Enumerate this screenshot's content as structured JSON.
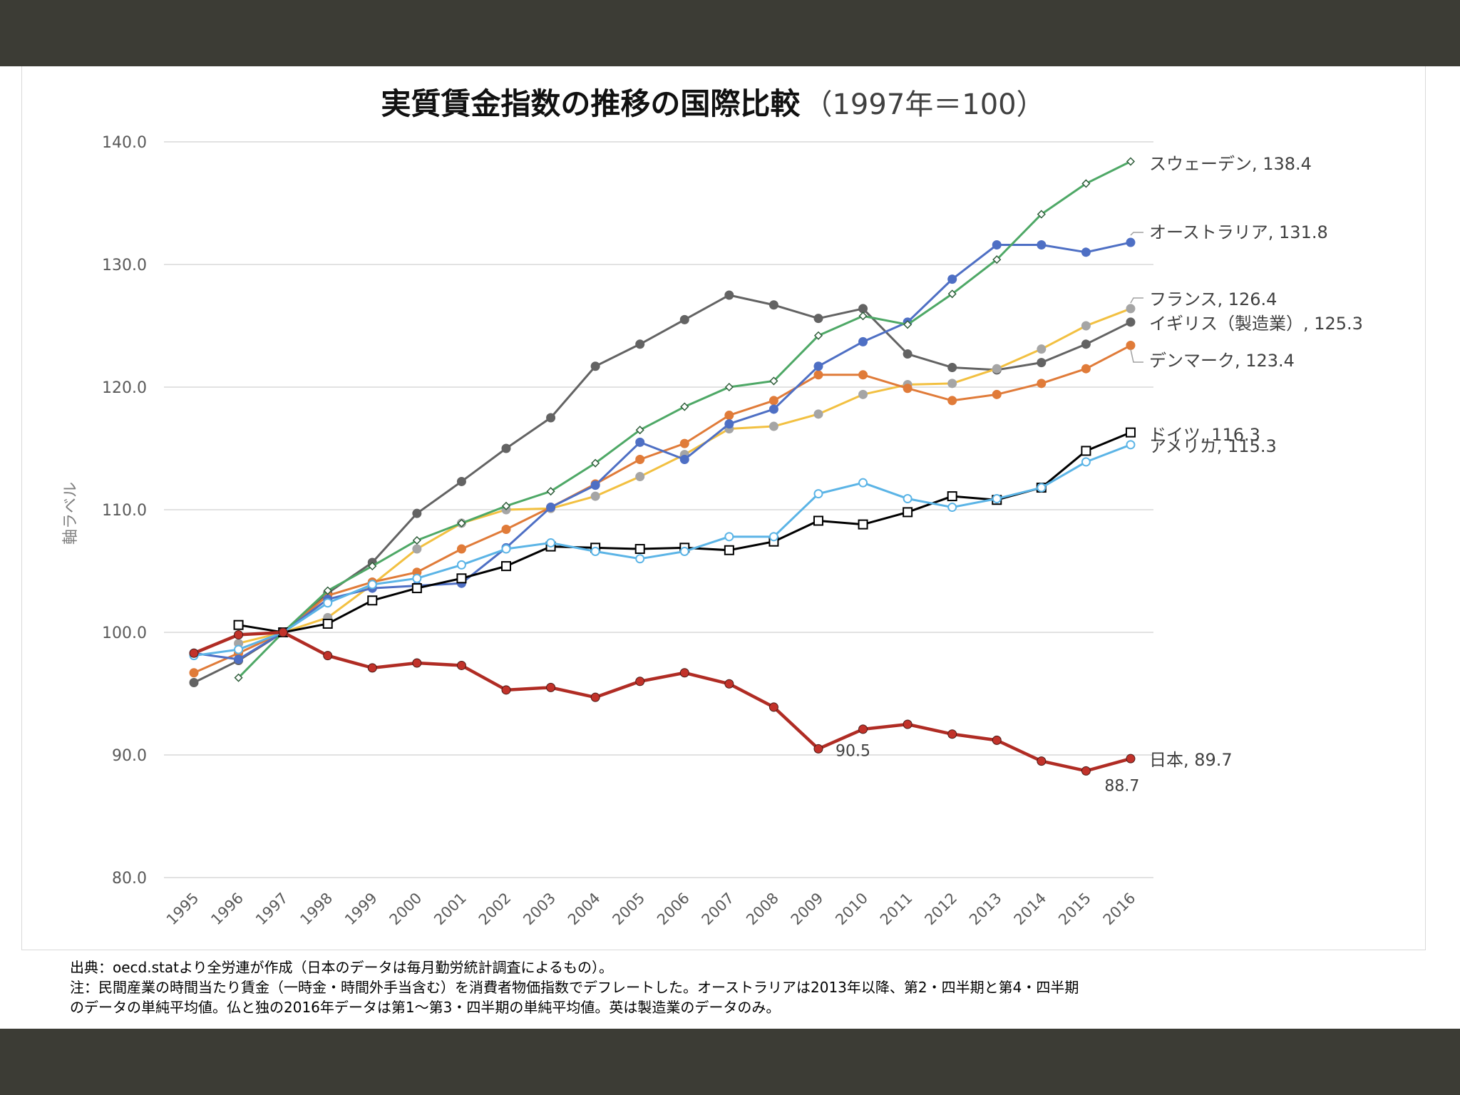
{
  "chart_data": {
    "type": "line",
    "title": "実質賃金指数の推移の国際比較",
    "title_suffix": "（1997年＝100）",
    "ylabel": "軸ラベル",
    "ylim": [
      80,
      140
    ],
    "yticks": [
      "80.0",
      "90.0",
      "100.0",
      "110.0",
      "120.0",
      "130.0",
      "140.0"
    ],
    "grid": true,
    "legend": "labels at series ends",
    "x": [
      "1995",
      "1996",
      "1997",
      "1998",
      "1999",
      "2000",
      "2001",
      "2002",
      "2003",
      "2004",
      "2005",
      "2006",
      "2007",
      "2008",
      "2009",
      "2010",
      "2011",
      "2012",
      "2013",
      "2014",
      "2015",
      "2016"
    ],
    "series": [
      {
        "name": "イギリス（製造業）",
        "end_label": "イギリス（製造業）, 125.3",
        "color": "#636363",
        "marker": "circle",
        "values": [
          95.9,
          97.7,
          100,
          103.2,
          105.7,
          109.7,
          112.3,
          115.0,
          117.5,
          121.7,
          123.5,
          125.5,
          127.5,
          126.7,
          125.6,
          126.4,
          122.7,
          121.6,
          121.4,
          122.0,
          123.5,
          125.3
        ]
      },
      {
        "name": "フランス",
        "end_label": "フランス, 126.4",
        "color": "#f2c041",
        "marker": "circle",
        "marker_color": "#a5a5a5",
        "values": [
          null,
          99.1,
          100,
          101.2,
          103.9,
          106.8,
          108.9,
          110.0,
          110.1,
          111.1,
          112.7,
          114.5,
          116.6,
          116.8,
          117.8,
          119.4,
          120.2,
          120.3,
          121.5,
          123.1,
          125.0,
          126.4
        ]
      },
      {
        "name": "デンマーク",
        "end_label": "デンマーク, 123.4",
        "color": "#e07b39",
        "marker": "circle",
        "values": [
          96.7,
          98.3,
          100,
          103.0,
          104.1,
          104.9,
          106.8,
          108.4,
          110.2,
          112.1,
          114.1,
          115.4,
          117.7,
          118.9,
          121.0,
          121.0,
          119.9,
          118.9,
          119.4,
          120.3,
          121.5,
          123.4
        ]
      },
      {
        "name": "オーストラリア",
        "end_label": "オーストラリア, 131.8",
        "color": "#4e6fc4",
        "marker": "circle",
        "values": [
          98.3,
          97.8,
          100,
          102.7,
          103.6,
          103.8,
          104.0,
          106.9,
          110.2,
          112.0,
          115.5,
          114.1,
          117.0,
          118.2,
          121.7,
          123.7,
          125.3,
          128.8,
          131.6,
          131.6,
          131.0,
          131.8
        ]
      },
      {
        "name": "スウェーデン",
        "end_label": "スウェーデン, 138.4",
        "color": "#4ea866",
        "marker": "diamond",
        "values": [
          null,
          96.3,
          100,
          103.4,
          105.4,
          107.5,
          108.9,
          110.3,
          111.5,
          113.8,
          116.5,
          118.4,
          120.0,
          120.5,
          124.2,
          125.8,
          125.1,
          127.6,
          130.4,
          134.1,
          136.6,
          138.4
        ]
      },
      {
        "name": "ドイツ",
        "end_label": "ドイツ, 116.3",
        "color": "#000000",
        "marker": "square",
        "values": [
          null,
          100.6,
          100,
          100.7,
          102.6,
          103.6,
          104.4,
          105.4,
          107.0,
          106.9,
          106.8,
          106.9,
          106.7,
          107.4,
          109.1,
          108.8,
          109.8,
          111.1,
          110.8,
          111.8,
          114.8,
          116.3
        ]
      },
      {
        "name": "アメリカ",
        "end_label": "アメリカ, 115.3",
        "color": "#5bb4e6",
        "marker": "open-circle",
        "values": [
          98.1,
          98.6,
          100,
          102.4,
          103.9,
          104.4,
          105.5,
          106.8,
          107.3,
          106.6,
          106.0,
          106.6,
          107.8,
          107.8,
          111.3,
          112.2,
          110.9,
          110.2,
          110.9,
          111.8,
          113.9,
          115.3
        ]
      },
      {
        "name": "日本",
        "end_label": "日本, 89.7",
        "color": "#b02c24",
        "marker": "circle",
        "marker_color": "#c2322a",
        "values": [
          98.3,
          99.8,
          100,
          98.1,
          97.1,
          97.5,
          97.3,
          95.3,
          95.5,
          94.7,
          96.0,
          96.7,
          95.8,
          93.9,
          90.5,
          92.1,
          92.5,
          91.7,
          91.2,
          89.5,
          88.7,
          89.7
        ]
      }
    ],
    "annotations": [
      {
        "series": "日本",
        "x": "2009",
        "text": "90.5"
      },
      {
        "series": "日本",
        "x": "2015",
        "text": "88.7"
      }
    ]
  },
  "notes": {
    "source": "出典：oecd.statより全労連が作成（日本のデータは毎月勤労統計調査によるもの）。",
    "note1": "注：民間産業の時間当たり賃金（一時金・時間外手当含む）を消費者物価指数でデフレートした。オーストラリアは2013年以降、第2・四半期と第4・四半期",
    "note2": "のデータの単純平均値。仏と独の2016年データは第1～第3・四半期の単純平均値。英は製造業のデータのみ。"
  }
}
